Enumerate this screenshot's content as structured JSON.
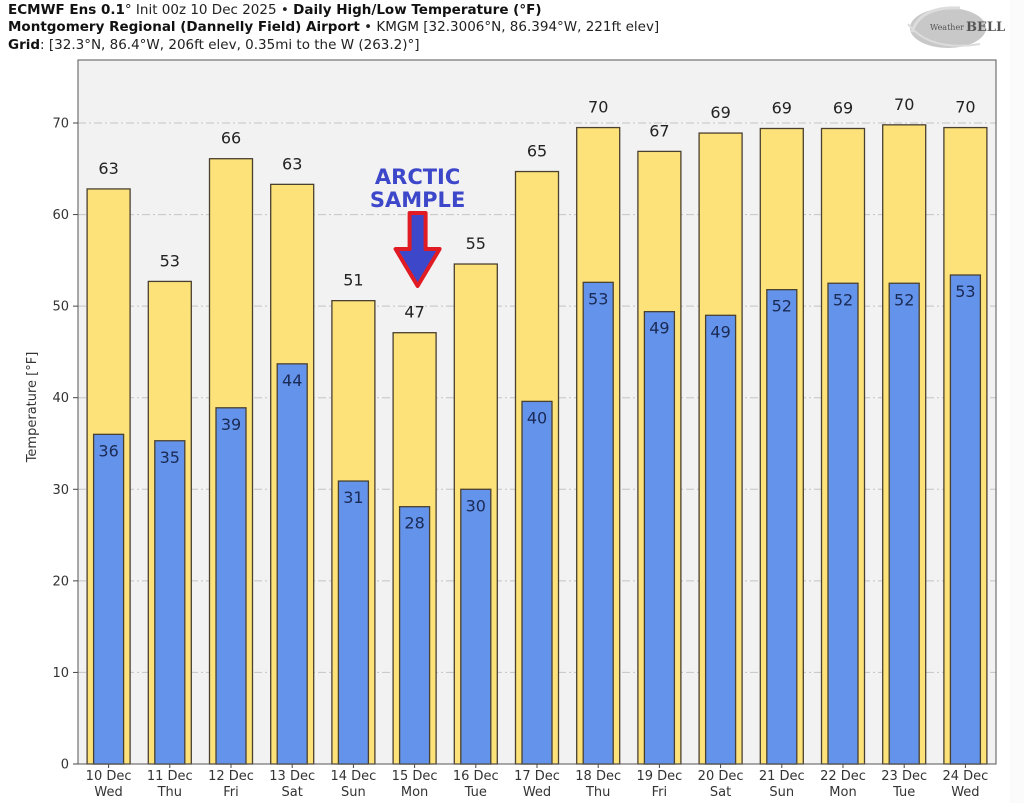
{
  "header": {
    "line1_bold_a": "ECMWF Ens 0.1",
    "line1_deg": "°",
    "line1_init": " Init 00z 10 Dec 2025 • ",
    "line1_bold_b": "Daily High/Low Temperature (°F)",
    "line2_bold": "Montgomery Regional (Dannelly Field) Airport",
    "line2_rest": " • KMGM [32.3006°N, 86.394°W, 221ft elev]",
    "line3_bold": "Grid",
    "line3_rest": ": [32.3°N, 86.4°W, 206ft elev, 0.35mi to the W (263.2)°]"
  },
  "logo": {
    "text_a": "Weather",
    "text_b": "BELL"
  },
  "annotation": {
    "line1": "ARCTIC",
    "line2": "SAMPLE",
    "target_category": "15 Dec"
  },
  "colors": {
    "high": "#fde27a",
    "low": "#6393ea",
    "plot_bg": "#f2f2f2",
    "arrow_fill": "#3d47c9",
    "arrow_stroke": "#e01b24",
    "outline": "#4a4030"
  },
  "chart_data": {
    "type": "bar",
    "title": "Daily High/Low Temperature (°F)",
    "xlabel": "",
    "ylabel": "Temperature [°F]",
    "ylim": [
      0,
      78
    ],
    "yticks": [
      0,
      10,
      20,
      30,
      40,
      50,
      60,
      70
    ],
    "grid": true,
    "legend": "none",
    "categories": [
      "10 Dec",
      "11 Dec",
      "12 Dec",
      "13 Dec",
      "14 Dec",
      "15 Dec",
      "16 Dec",
      "17 Dec",
      "18 Dec",
      "19 Dec",
      "20 Dec",
      "21 Dec",
      "22 Dec",
      "23 Dec",
      "24 Dec"
    ],
    "weekdays": [
      "Wed",
      "Thu",
      "Fri",
      "Sat",
      "Sun",
      "Mon",
      "Tue",
      "Wed",
      "Thu",
      "Fri",
      "Sat",
      "Sun",
      "Mon",
      "Tue",
      "Wed"
    ],
    "series": [
      {
        "name": "High",
        "values": [
          62.8,
          52.7,
          66.1,
          63.3,
          50.6,
          47.1,
          54.6,
          64.7,
          69.5,
          66.9,
          68.9,
          69.4,
          69.4,
          69.8,
          69.5
        ],
        "labels": [
          "63",
          "53",
          "66",
          "63",
          "51",
          "47",
          "55",
          "65",
          "70",
          "67",
          "69",
          "69",
          "69",
          "70",
          "70"
        ]
      },
      {
        "name": "Low",
        "values": [
          36.0,
          35.3,
          38.9,
          43.7,
          30.9,
          28.1,
          30.0,
          39.6,
          52.6,
          49.4,
          49.0,
          51.8,
          52.5,
          52.5,
          53.4
        ],
        "labels": [
          "36",
          "35",
          "39",
          "44",
          "31",
          "28",
          "30",
          "40",
          "53",
          "49",
          "49",
          "52",
          "52",
          "52",
          "53"
        ]
      }
    ]
  }
}
